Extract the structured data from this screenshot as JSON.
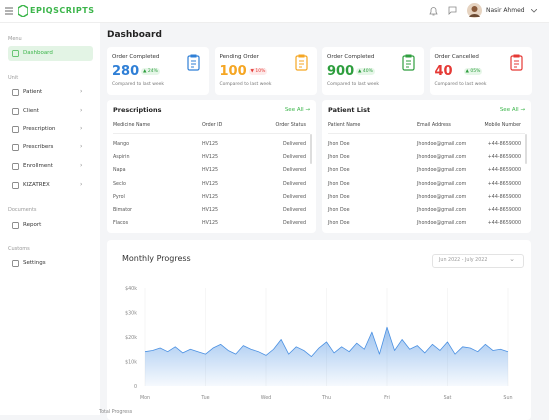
{
  "header": {
    "logo": "EPIQSCRIPTS",
    "user": "Nasir Ahmed"
  },
  "sidebar": {
    "sections": [
      {
        "title": "Menu",
        "items": [
          "Dashboard"
        ]
      },
      {
        "title": "Unit",
        "items": [
          "Patient",
          "Client",
          "Prescription",
          "Prescribers",
          "Enrollment",
          "KIZATREX"
        ]
      },
      {
        "title": "Documents",
        "items": [
          "Report"
        ]
      },
      {
        "title": "Customs",
        "items": [
          "Settings"
        ]
      }
    ]
  },
  "page_title": "Dashboard",
  "cards": [
    {
      "title": "Order Completed",
      "value": 280,
      "change": "24%",
      "trend": "up",
      "color": "#2f7fd6",
      "note": "Compared to last week"
    },
    {
      "title": "Pending Order",
      "value": 100,
      "change": "10%",
      "trend": "down",
      "color": "#f5a623",
      "note": "Compared to last week"
    },
    {
      "title": "Order Completed",
      "value": 900,
      "change": "40%",
      "trend": "up",
      "color": "#2e9e3e",
      "note": "Compared to last week"
    },
    {
      "title": "Order Cancelled",
      "value": 40,
      "change": "05%",
      "trend": "up",
      "color": "#e53935",
      "note": "Compared to last week"
    }
  ],
  "prescriptions": {
    "title": "Prescriptions",
    "see_all": "See All",
    "columns": [
      "Medicine Name",
      "Order ID",
      "Order Status"
    ],
    "rows": [
      [
        "Mango",
        "HV125",
        "Delivered"
      ],
      [
        "Aspirin",
        "HV125",
        "Delivered"
      ],
      [
        "Napa",
        "HV125",
        "Delivered"
      ],
      [
        "Seclo",
        "HV125",
        "Delivered"
      ],
      [
        "Pyrol",
        "HV125",
        "Delivered"
      ],
      [
        "Bimator",
        "HV125",
        "Delivered"
      ],
      [
        "Flacos",
        "HV125",
        "Delivered"
      ]
    ]
  },
  "patients": {
    "title": "Patient List",
    "see_all": "See All",
    "columns": [
      "Patient Name",
      "Email Address",
      "Mobile Number"
    ],
    "rows": [
      [
        "Jhon Doe",
        "Jhondoe@gmail.com",
        "+44-8659000"
      ],
      [
        "Jhon Doe",
        "Jhondoe@gmail.com",
        "+44-8659000"
      ],
      [
        "Jhon Doe",
        "Jhondoe@gmail.com",
        "+44-8659000"
      ],
      [
        "Jhon Doe",
        "Jhondoe@gmail.com",
        "+44-8659000"
      ],
      [
        "Jhon Doe",
        "Jhondoe@gmail.com",
        "+44-8659000"
      ],
      [
        "Jhon Doe",
        "Jhondoe@gmail.com",
        "+44-8659000"
      ],
      [
        "Jhon Doe",
        "Jhondoe@gmail.com",
        "+44-8659000"
      ]
    ]
  },
  "chart_data": {
    "type": "area",
    "title": "Monthly Progress",
    "range": "Jun 2022 - July 2022",
    "footer": "Total Progress",
    "color": "#4a90e2",
    "x": [
      0,
      0.125,
      0.25,
      0.375,
      0.5,
      0.625,
      0.75,
      0.875,
      1,
      1.125,
      1.25,
      1.375,
      1.5,
      1.625,
      1.75,
      1.875,
      2,
      2.125,
      2.25,
      2.375,
      2.5,
      2.625,
      2.75,
      2.875,
      3,
      3.125,
      3.25,
      3.375,
      3.5,
      3.625,
      3.75,
      3.875,
      4,
      4.125,
      4.25,
      4.375,
      4.5,
      4.625,
      4.75,
      4.875,
      5,
      5.125,
      5.25,
      5.375,
      5.5,
      5.625,
      5.75,
      5.875,
      6
    ],
    "values": [
      14000,
      14500,
      15500,
      14000,
      16000,
      13500,
      15000,
      14000,
      13000,
      15500,
      17000,
      14500,
      13000,
      16500,
      15000,
      14000,
      12500,
      15000,
      19000,
      13000,
      16000,
      14500,
      12000,
      15500,
      18000,
      13500,
      16000,
      14000,
      17500,
      15000,
      22000,
      13000,
      24000,
      14500,
      19000,
      15000,
      16500,
      13500,
      17000,
      14500,
      18000,
      13000,
      16000,
      15500,
      14000,
      17000,
      14500,
      15000,
      14000
    ],
    "xlim": [
      0,
      6
    ],
    "xticks": [
      {
        "value": 0,
        "label": "Mon"
      },
      {
        "value": 1,
        "label": "Tue"
      },
      {
        "value": 2,
        "label": "Wed"
      },
      {
        "value": 3,
        "label": "Thu"
      },
      {
        "value": 4,
        "label": "Fri"
      },
      {
        "value": 5,
        "label": "Sat"
      },
      {
        "value": 6,
        "label": "Sun"
      }
    ],
    "ylim": [
      0,
      40000
    ],
    "yticks": [
      0,
      {
        "value": 10000,
        "label": "$10k"
      },
      {
        "value": 20000,
        "label": "$20k"
      },
      {
        "value": 30000,
        "label": "$30k"
      },
      {
        "value": 40000,
        "label": "$40k"
      }
    ],
    "grid": true
  }
}
